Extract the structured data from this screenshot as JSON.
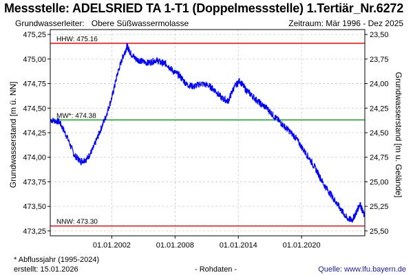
{
  "header": {
    "title": "Messstelle: ADELSRIED TA 1-T1 (Doppelmessstelle) 1.Tertiär_Nr.6272",
    "aquifer_label": "Grundwasserleiter:",
    "aquifer_value": "Obere Süßwassermolasse",
    "period": "Zeitraum: Mär 1996 - Dez 2025"
  },
  "footer": {
    "note": "* Abflussjahr (1995-2024)",
    "created": "erstellt:  15.01.2026",
    "data_type": "- Rohdaten -",
    "source": "Quelle:  www.lfu.bayern.de"
  },
  "chart_data": {
    "type": "line",
    "ylabel": "Grundwasserstand [m ü. NN]",
    "y2label": "Grundwasserstand [m u. Gelände]",
    "ylim": [
      473.2,
      475.3
    ],
    "y2lim": [
      25.55,
      23.45
    ],
    "xlim": [
      "1996-03-01",
      "2025-12-31"
    ],
    "yticks": [
      "475,25",
      "475,00",
      "474,75",
      "474,50",
      "474,25",
      "474,00",
      "473,75",
      "473,50",
      "473,25"
    ],
    "y2ticks": [
      "23,50",
      "23,75",
      "24,00",
      "24,25",
      "24,50",
      "24,75",
      "25,00",
      "25,25",
      "25,50"
    ],
    "xticks": [
      "01.01.2002",
      "01.01.2008",
      "01.01.2014",
      "01.01.2020"
    ],
    "grid": true,
    "reference_lines": [
      {
        "label": "HHW: 475.16",
        "value": 475.16,
        "color": "#ff0000"
      },
      {
        "label": "MW*: 474.38",
        "value": 474.38,
        "color": "#009900"
      },
      {
        "label": "NNW: 473.30",
        "value": 473.3,
        "color": "#ff0000"
      }
    ],
    "series": [
      {
        "color": "#0000ff",
        "x": [
          "1996-03",
          "1997-01",
          "1997-09",
          "1998-06",
          "1999-01",
          "1999-08",
          "2000-03",
          "2000-10",
          "2001-06",
          "2002-01",
          "2002-07",
          "2003-01",
          "2003-06",
          "2003-10",
          "2004-04",
          "2004-10",
          "2005-06",
          "2006-03",
          "2006-10",
          "2007-03",
          "2007-10",
          "2008-06",
          "2009-02",
          "2009-10",
          "2010-06",
          "2011-03",
          "2011-10",
          "2012-06",
          "2013-01",
          "2013-07",
          "2014-02",
          "2014-09",
          "2015-05",
          "2016-01",
          "2016-09",
          "2017-05",
          "2018-01",
          "2018-09",
          "2019-05",
          "2020-01",
          "2020-10",
          "2021-06",
          "2022-02",
          "2022-10",
          "2023-04",
          "2023-10",
          "2024-04",
          "2024-10",
          "2025-03",
          "2025-07",
          "2025-12"
        ],
        "y": [
          474.38,
          474.36,
          474.22,
          474.02,
          473.96,
          473.98,
          474.08,
          474.24,
          474.42,
          474.62,
          474.85,
          475.02,
          475.13,
          475.06,
          475.0,
          474.98,
          474.96,
          474.99,
          474.96,
          474.95,
          474.88,
          474.83,
          474.74,
          474.72,
          474.75,
          474.73,
          474.68,
          474.6,
          474.57,
          474.7,
          474.78,
          474.69,
          474.62,
          474.55,
          474.5,
          474.42,
          474.35,
          474.28,
          474.21,
          474.1,
          473.98,
          473.86,
          473.72,
          473.62,
          473.54,
          473.46,
          473.38,
          473.36,
          473.44,
          473.53,
          473.4
        ]
      }
    ]
  }
}
